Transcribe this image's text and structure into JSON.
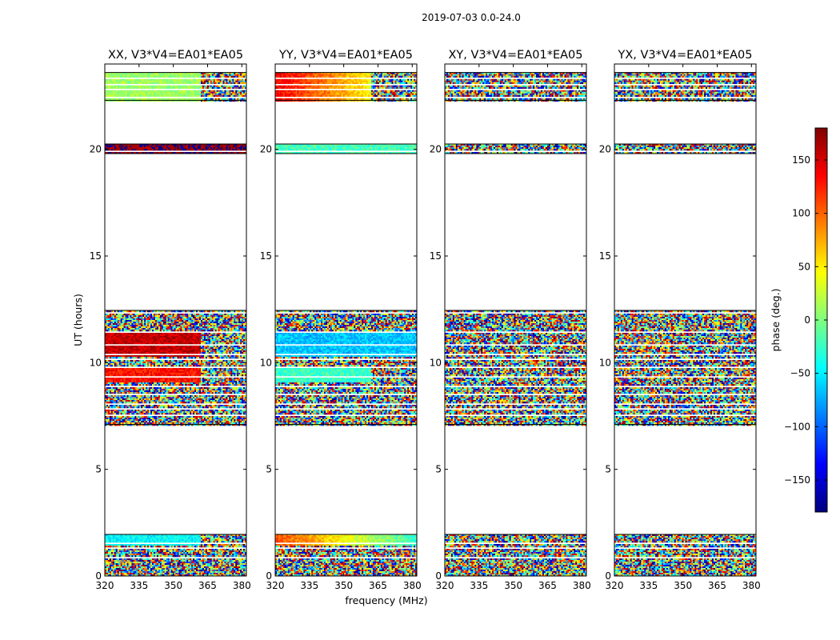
{
  "suptitle": "2019-07-03 0.0-24.0",
  "chart_data": {
    "type": "heatmap",
    "title": "2019-07-03 0.0-24.0",
    "xlabel": "frequency (MHz)",
    "ylabel": "UT (hours)",
    "xlim": [
      320,
      382
    ],
    "ylim": [
      0,
      24
    ],
    "xticks": [
      "320",
      "335",
      "350",
      "365",
      "380"
    ],
    "yticks": [
      "0",
      "5",
      "10",
      "15",
      "20"
    ],
    "colorbar": {
      "label": "phase (deg.)",
      "range": [
        -180,
        180
      ],
      "ticks": [
        "150",
        "100",
        "50",
        "0",
        "−50",
        "−100",
        "−150"
      ],
      "colormap": "jet",
      "colors": [
        "#00007f",
        "#0000ff",
        "#007fff",
        "#00ffff",
        "#7fff7f",
        "#ffff00",
        "#ff7f00",
        "#ff0000",
        "#7f0000"
      ]
    },
    "observed_ut_ranges": [
      [
        0.0,
        1.95
      ],
      [
        7.1,
        12.45
      ],
      [
        19.8,
        20.25
      ],
      [
        22.3,
        23.6
      ]
    ],
    "panels": [
      {
        "title": "XX, V3*V4=EA01*EA05",
        "pattern": "structured",
        "regions": [
          {
            "ut": [
              1.45,
              1.95
            ],
            "freq": [
              320,
              362
            ],
            "phase_mean": -45
          },
          {
            "ut": [
              9.1,
              9.8
            ],
            "freq": [
              320,
              362
            ],
            "phase_mean": 130
          },
          {
            "ut": [
              10.3,
              11.4
            ],
            "freq": [
              320,
              362
            ],
            "phase_mean": 155
          },
          {
            "ut": [
              19.8,
              20.25
            ],
            "freq": [
              320,
              382
            ],
            "phase_mean": 175
          },
          {
            "ut": [
              22.3,
              23.6
            ],
            "freq": [
              320,
              362
            ],
            "phase_mean": 10
          }
        ]
      },
      {
        "title": "YY, V3*V4=EA01*EA05",
        "pattern": "structured",
        "regions": [
          {
            "ut": [
              1.45,
              1.95
            ],
            "freq": [
              320,
              382
            ],
            "phase_mean": 110,
            "gradient": "red to yellow-green with frequency"
          },
          {
            "ut": [
              9.1,
              9.8
            ],
            "freq": [
              320,
              362
            ],
            "phase_mean": -25
          },
          {
            "ut": [
              10.3,
              11.4
            ],
            "freq": [
              320,
              382
            ],
            "phase_mean": -65
          },
          {
            "ut": [
              19.8,
              20.25
            ],
            "freq": [
              320,
              382
            ],
            "phase_mean": -20
          },
          {
            "ut": [
              22.3,
              23.6
            ],
            "freq": [
              320,
              362
            ],
            "phase_mean": 140,
            "gradient": "red to orange with frequency"
          }
        ]
      },
      {
        "title": "XY, V3*V4=EA01*EA05",
        "pattern": "noise",
        "regions": []
      },
      {
        "title": "YX, V3*V4=EA01*EA05",
        "pattern": "noise",
        "regions": []
      }
    ]
  }
}
